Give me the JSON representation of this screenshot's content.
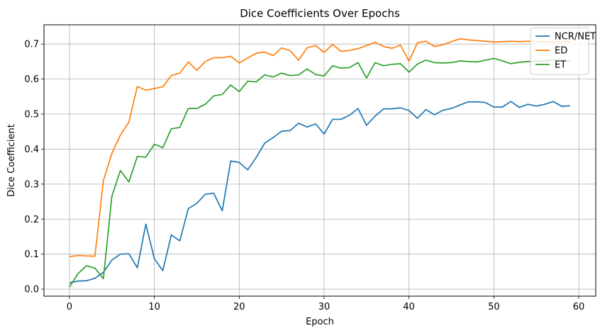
{
  "chart_data": {
    "type": "line",
    "title": "Dice Coefficients Over Epochs",
    "xlabel": "Epoch",
    "ylabel": "Dice Coefficient",
    "xlim": [
      -3,
      62
    ],
    "ylim": [
      -0.02,
      0.755
    ],
    "xticks": [
      0,
      10,
      20,
      30,
      40,
      50,
      60
    ],
    "yticks": [
      0.0,
      0.1,
      0.2,
      0.3,
      0.4,
      0.5,
      0.6,
      0.7
    ],
    "grid": true,
    "legend_position": "top-right",
    "x": [
      0,
      1,
      2,
      3,
      4,
      5,
      6,
      7,
      8,
      9,
      10,
      11,
      12,
      13,
      14,
      15,
      16,
      17,
      18,
      19,
      20,
      21,
      22,
      23,
      24,
      25,
      26,
      27,
      28,
      29,
      30,
      31,
      32,
      33,
      34,
      35,
      36,
      37,
      38,
      39,
      40,
      41,
      42,
      43,
      44,
      45,
      46,
      47,
      48,
      49,
      50,
      51,
      52,
      53,
      54,
      55,
      56,
      57,
      58,
      59
    ],
    "series": [
      {
        "name": "NCR/NET",
        "color": "#1f77b4",
        "values": [
          0.018,
          0.023,
          0.024,
          0.031,
          0.048,
          0.083,
          0.1,
          0.101,
          0.061,
          0.186,
          0.087,
          0.053,
          0.155,
          0.138,
          0.23,
          0.245,
          0.271,
          0.274,
          0.224,
          0.366,
          0.362,
          0.341,
          0.376,
          0.417,
          0.433,
          0.451,
          0.453,
          0.474,
          0.463,
          0.472,
          0.443,
          0.485,
          0.485,
          0.497,
          0.516,
          0.468,
          0.494,
          0.515,
          0.515,
          0.518,
          0.51,
          0.488,
          0.513,
          0.498,
          0.511,
          0.516,
          0.526,
          0.535,
          0.535,
          0.533,
          0.52,
          0.52,
          0.536,
          0.519,
          0.528,
          0.523,
          0.528,
          0.536,
          0.522,
          0.524
        ]
      },
      {
        "name": "ED",
        "color": "#ff7f0e",
        "values": [
          0.093,
          0.096,
          0.095,
          0.094,
          0.31,
          0.388,
          0.44,
          0.477,
          0.579,
          0.568,
          0.573,
          0.578,
          0.61,
          0.617,
          0.649,
          0.625,
          0.65,
          0.661,
          0.661,
          0.665,
          0.646,
          0.66,
          0.674,
          0.677,
          0.667,
          0.689,
          0.681,
          0.654,
          0.689,
          0.696,
          0.676,
          0.699,
          0.679,
          0.682,
          0.687,
          0.696,
          0.705,
          0.693,
          0.688,
          0.697,
          0.651,
          0.704,
          0.708,
          0.693,
          0.698,
          0.707,
          0.715,
          0.712,
          0.71,
          0.708,
          0.706,
          0.707,
          0.708,
          0.707,
          0.708,
          0.707,
          0.706,
          0.706,
          0.707,
          0.706
        ]
      },
      {
        "name": "ET",
        "color": "#2ca02c",
        "values": [
          0.006,
          0.044,
          0.067,
          0.06,
          0.03,
          0.265,
          0.339,
          0.306,
          0.379,
          0.377,
          0.414,
          0.404,
          0.458,
          0.462,
          0.516,
          0.516,
          0.528,
          0.552,
          0.556,
          0.583,
          0.564,
          0.594,
          0.592,
          0.612,
          0.606,
          0.617,
          0.61,
          0.612,
          0.629,
          0.613,
          0.609,
          0.638,
          0.631,
          0.633,
          0.647,
          0.603,
          0.647,
          0.638,
          0.642,
          0.644,
          0.62,
          0.643,
          0.654,
          0.647,
          0.646,
          0.647,
          0.652,
          0.65,
          0.649,
          0.654,
          0.659,
          0.652,
          0.644,
          0.648,
          0.65,
          0.651,
          0.652,
          0.655,
          0.655,
          0.652
        ]
      }
    ]
  }
}
